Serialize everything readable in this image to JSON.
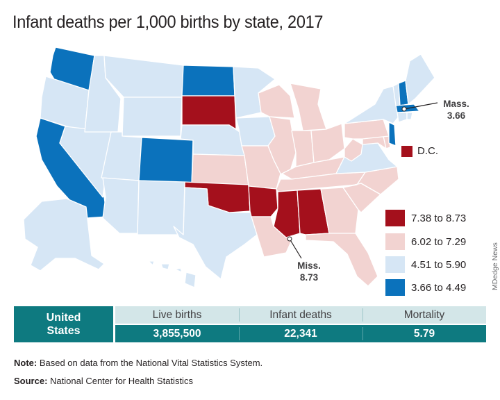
{
  "title": "Infant deaths per 1,000 births by state, 2017",
  "colors": {
    "high": "#a4101c",
    "mid_high": "#f2d3d1",
    "mid_low": "#d6e6f5",
    "low": "#0b72bc",
    "table_dark": "#0e7a80",
    "table_light": "#d3e6e8"
  },
  "legend": [
    {
      "label": "7.38 to 8.73",
      "color": "#a4101c"
    },
    {
      "label": "6.02 to 7.29",
      "color": "#f2d3d1"
    },
    {
      "label": "4.51 to 5.90",
      "color": "#d6e6f5"
    },
    {
      "label": "3.66 to 4.49",
      "color": "#0b72bc"
    }
  ],
  "callouts": {
    "mass": {
      "name": "Mass.",
      "value": "3.66"
    },
    "miss": {
      "name": "Miss.",
      "value": "8.73"
    }
  },
  "dc": {
    "label": "D.C.",
    "color": "#a4101c"
  },
  "table": {
    "row_label_line1": "United",
    "row_label_line2": "States",
    "headers": [
      "Live births",
      "Infant deaths",
      "Mortality"
    ],
    "values": [
      "3,855,500",
      "22,341",
      "5.79"
    ]
  },
  "note": {
    "label": "Note:",
    "text": " Based on data from the National Vital Statistics System."
  },
  "source": {
    "label": "Source:",
    "text": " National Center for Health Statistics"
  },
  "credit": "MDedge News"
}
